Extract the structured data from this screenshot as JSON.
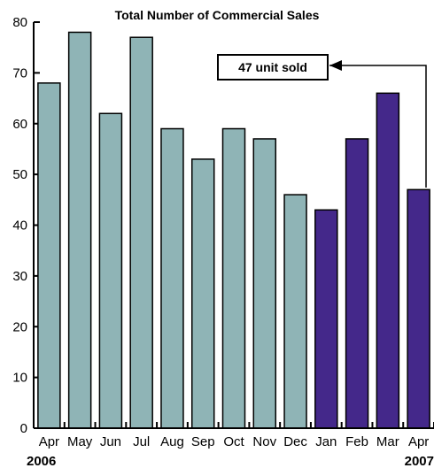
{
  "chart_data": {
    "type": "bar",
    "title": "Total Number of Commercial Sales",
    "xlabel": "",
    "ylabel": "",
    "categories": [
      "Apr",
      "May",
      "Jun",
      "Jul",
      "Aug",
      "Sep",
      "Oct",
      "Nov",
      "Dec",
      "Jan",
      "Feb",
      "Mar",
      "Apr"
    ],
    "values": [
      68,
      78,
      62,
      77,
      59,
      53,
      59,
      57,
      46,
      43,
      57,
      66,
      47
    ],
    "ylim": [
      0,
      80
    ],
    "yticks": [
      "0",
      "10",
      "20",
      "30",
      "40",
      "50",
      "60",
      "70",
      "80"
    ],
    "grid": false,
    "year_labels": {
      "start": "2006",
      "end": "2007"
    },
    "bar_colors": [
      "#8fb4b6",
      "#8fb4b6",
      "#8fb4b6",
      "#8fb4b6",
      "#8fb4b6",
      "#8fb4b6",
      "#8fb4b6",
      "#8fb4b6",
      "#8fb4b6",
      "#44288a",
      "#44288a",
      "#44288a",
      "#44288a"
    ],
    "annotation": {
      "text": "47 unit sold",
      "target_category_index": 12
    }
  }
}
